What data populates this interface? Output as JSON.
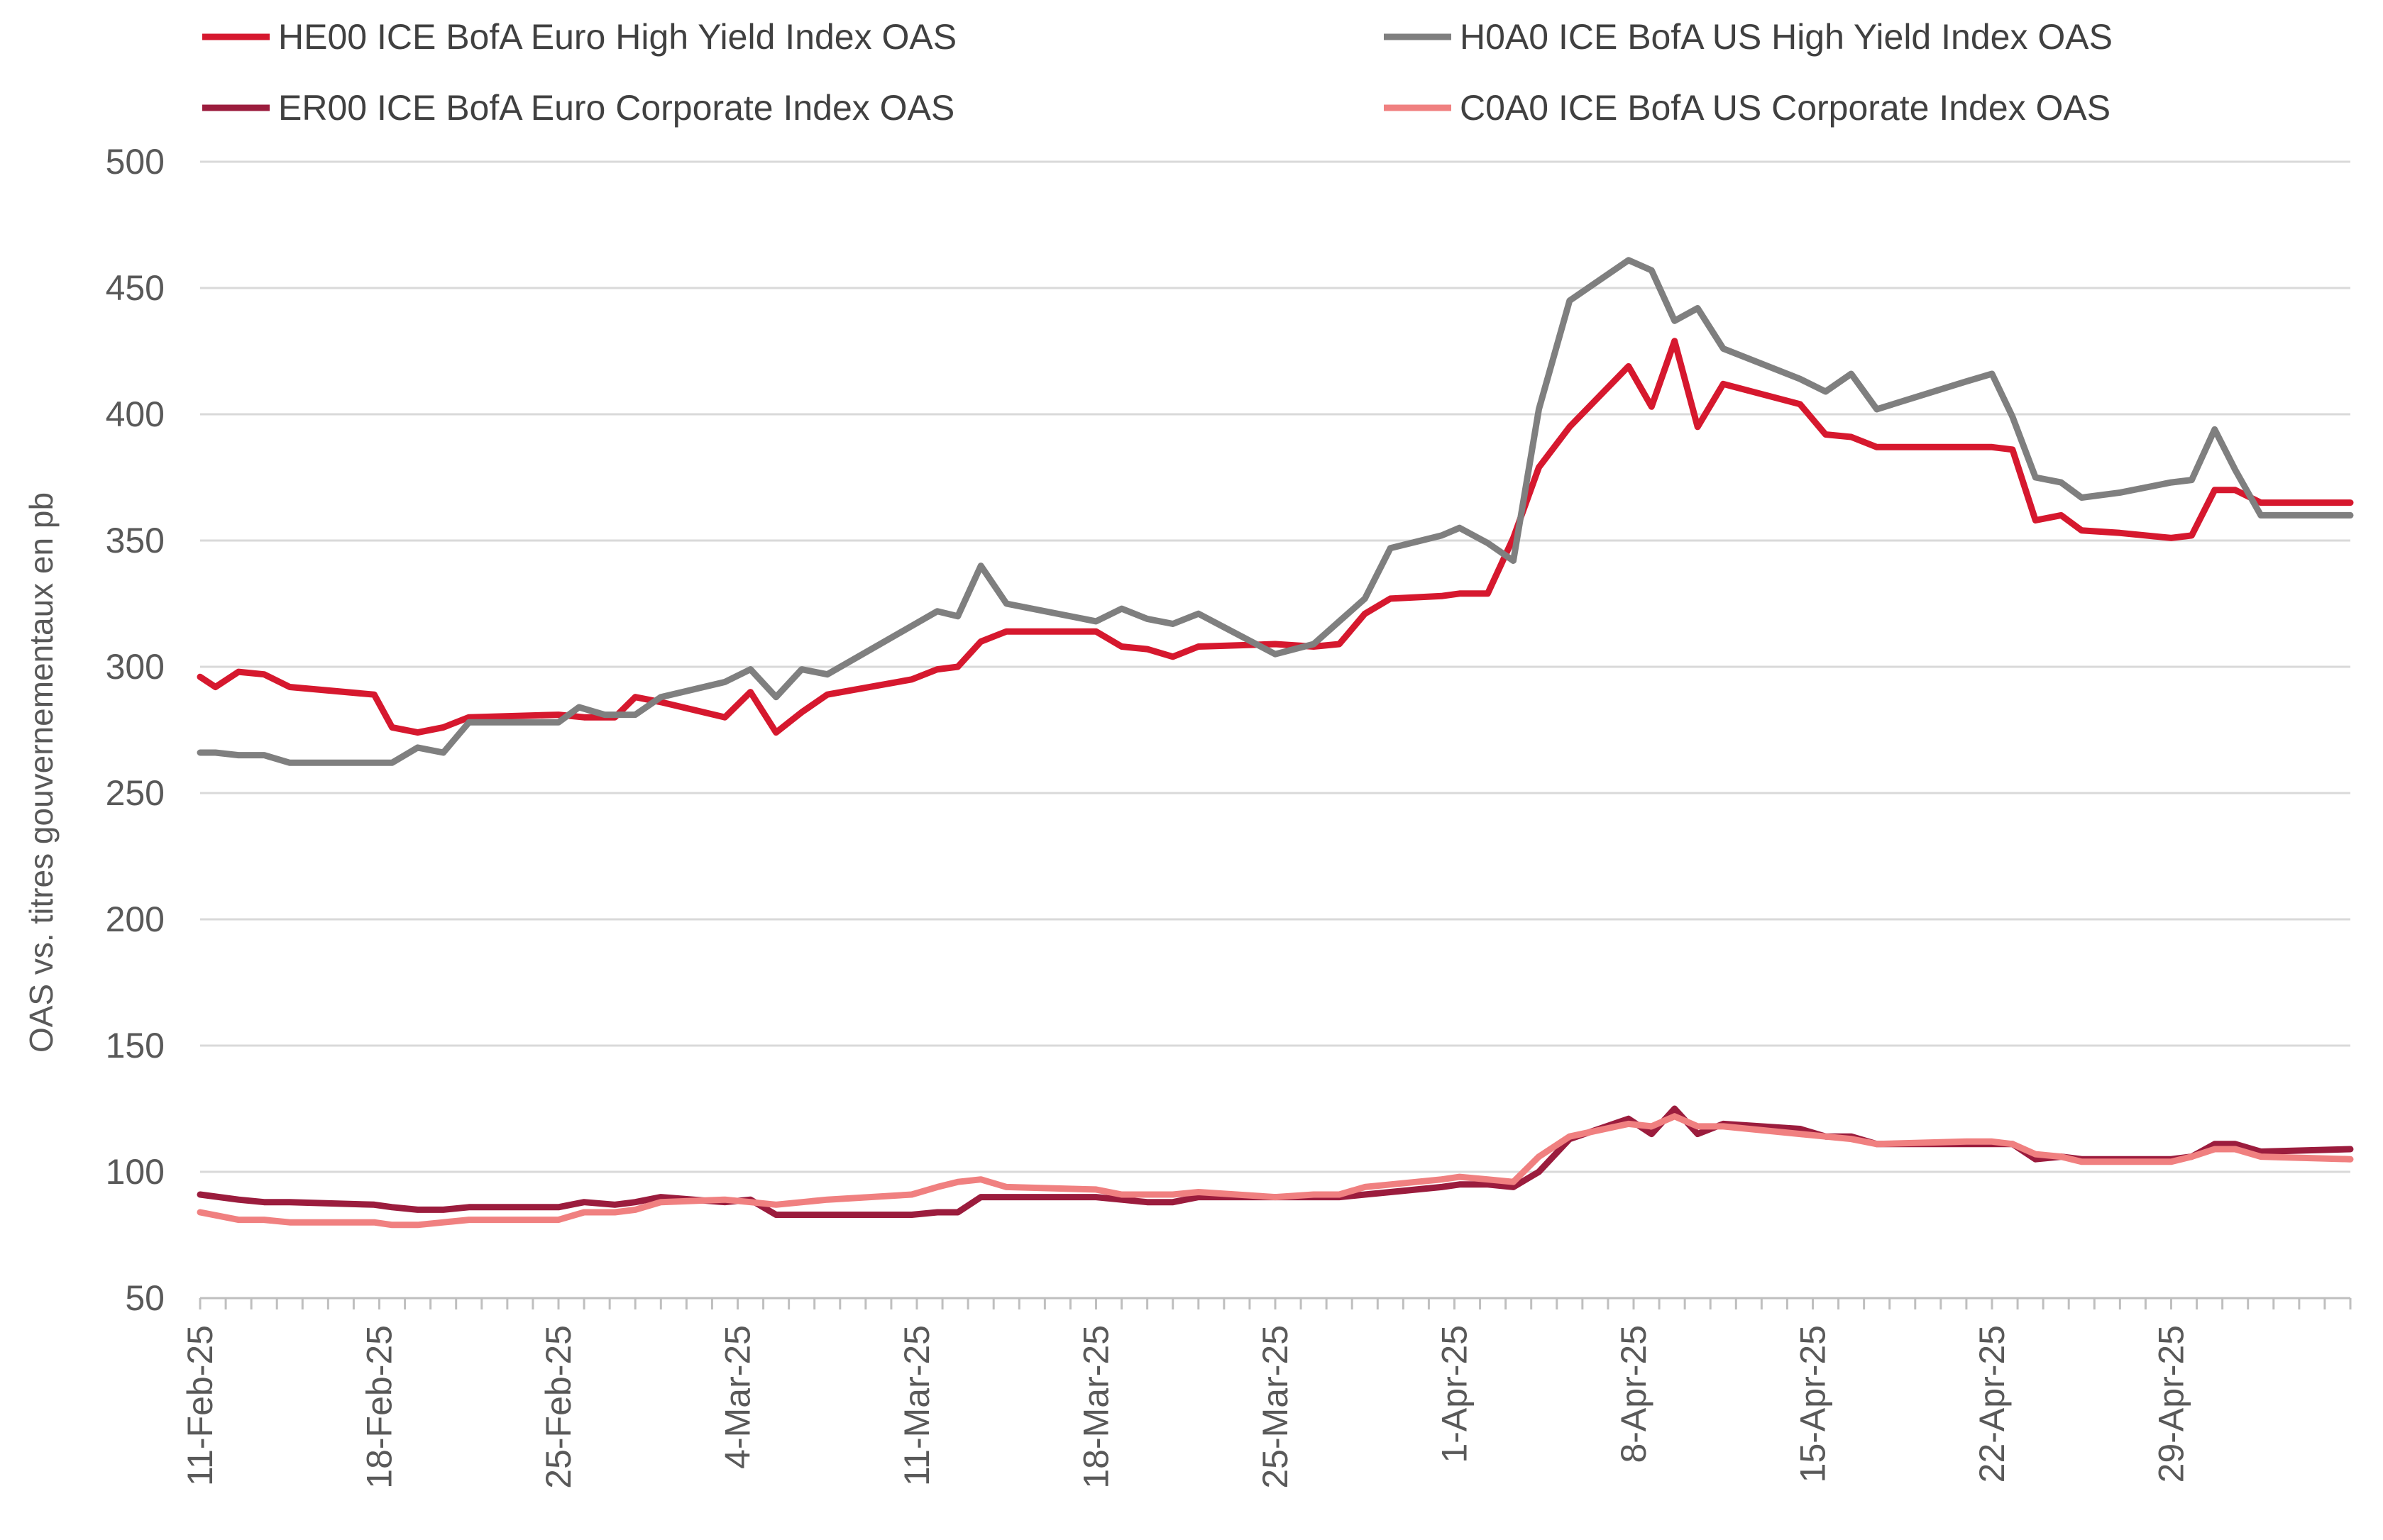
{
  "chart_data": {
    "type": "line",
    "ylabel": "OAS vs. titres gouvernementaux en pb",
    "xlabel": "",
    "ylim": [
      50,
      500
    ],
    "yticks": [
      50,
      100,
      150,
      200,
      250,
      300,
      350,
      400,
      450,
      500
    ],
    "grid": "horizontal",
    "legend_position": "top",
    "x_tick_labels": [
      "11-Feb-25",
      "18-Feb-25",
      "25-Feb-25",
      "4-Mar-25",
      "11-Mar-25",
      "18-Mar-25",
      "25-Mar-25",
      "1-Apr-25",
      "8-Apr-25",
      "15-Apr-25",
      "22-Apr-25",
      "29-Apr-25"
    ],
    "x_tick_days": [
      0,
      7,
      14,
      21,
      28,
      35,
      42,
      49,
      56,
      63,
      70,
      77
    ],
    "x_range_days": [
      0,
      84
    ],
    "series": [
      {
        "name": "HE00 ICE BofA Euro High Yield Index OAS",
        "color": "#d6182e",
        "points": [
          [
            0,
            296
          ],
          [
            0.6,
            292
          ],
          [
            1.5,
            298
          ],
          [
            2.5,
            297
          ],
          [
            3.5,
            292
          ],
          [
            6.8,
            289
          ],
          [
            7.5,
            276
          ],
          [
            8.5,
            274
          ],
          [
            9.5,
            276
          ],
          [
            10.5,
            280
          ],
          [
            14,
            281
          ],
          [
            15,
            280
          ],
          [
            16.2,
            280
          ],
          [
            17,
            288
          ],
          [
            18,
            286
          ],
          [
            20.5,
            280
          ],
          [
            21.5,
            290
          ],
          [
            22.5,
            274
          ],
          [
            23.5,
            282
          ],
          [
            24.5,
            289
          ],
          [
            27.8,
            295
          ],
          [
            28.8,
            299
          ],
          [
            29.6,
            300
          ],
          [
            30.5,
            310
          ],
          [
            31.5,
            314
          ],
          [
            33.5,
            314
          ],
          [
            35,
            314
          ],
          [
            36,
            308
          ],
          [
            37,
            307
          ],
          [
            38,
            304
          ],
          [
            39,
            308
          ],
          [
            42,
            309
          ],
          [
            43.5,
            308
          ],
          [
            44.5,
            309
          ],
          [
            45.5,
            321
          ],
          [
            46.5,
            327
          ],
          [
            48.5,
            328
          ],
          [
            49.2,
            329
          ],
          [
            50.3,
            329
          ],
          [
            51.3,
            351
          ],
          [
            52.3,
            379
          ],
          [
            53.5,
            395
          ],
          [
            55.8,
            419
          ],
          [
            56.7,
            403
          ],
          [
            57.6,
            429
          ],
          [
            58.5,
            395
          ],
          [
            59.5,
            412
          ],
          [
            62.5,
            404
          ],
          [
            63.5,
            392
          ],
          [
            64.5,
            391
          ],
          [
            65.5,
            387
          ],
          [
            69,
            387
          ],
          [
            70,
            387
          ],
          [
            70.8,
            386
          ],
          [
            71.7,
            358
          ],
          [
            72.7,
            360
          ],
          [
            73.5,
            354
          ],
          [
            75,
            353
          ],
          [
            77,
            351
          ],
          [
            77.8,
            352
          ],
          [
            78.7,
            370
          ],
          [
            79.5,
            370
          ],
          [
            80.5,
            365
          ],
          [
            84,
            365
          ]
        ]
      },
      {
        "name": "H0A0 ICE BofA US High Yield Index OAS",
        "color": "#7f7f7f",
        "points": [
          [
            0,
            266
          ],
          [
            0.6,
            266
          ],
          [
            1.5,
            265
          ],
          [
            2.5,
            265
          ],
          [
            3.5,
            262
          ],
          [
            6.8,
            262
          ],
          [
            7.5,
            262
          ],
          [
            8.5,
            268
          ],
          [
            9.5,
            266
          ],
          [
            10.5,
            278
          ],
          [
            14,
            278
          ],
          [
            14.8,
            284
          ],
          [
            15.8,
            281
          ],
          [
            17,
            281
          ],
          [
            18,
            288
          ],
          [
            20.5,
            294
          ],
          [
            21.5,
            299
          ],
          [
            22.5,
            288
          ],
          [
            23.5,
            299
          ],
          [
            24.5,
            297
          ],
          [
            28.8,
            322
          ],
          [
            29.6,
            320
          ],
          [
            30.5,
            340
          ],
          [
            31.5,
            325
          ],
          [
            35,
            318
          ],
          [
            36,
            323
          ],
          [
            37,
            319
          ],
          [
            38,
            317
          ],
          [
            39,
            321
          ],
          [
            42,
            305
          ],
          [
            43.5,
            309
          ],
          [
            44.5,
            318
          ],
          [
            45.5,
            327
          ],
          [
            46.5,
            347
          ],
          [
            48.5,
            352
          ],
          [
            49.2,
            355
          ],
          [
            50.3,
            349
          ],
          [
            51.3,
            342
          ],
          [
            52.3,
            402
          ],
          [
            53.5,
            445
          ],
          [
            55.8,
            461
          ],
          [
            56.7,
            457
          ],
          [
            57.6,
            437
          ],
          [
            58.5,
            442
          ],
          [
            59.5,
            426
          ],
          [
            62.5,
            414
          ],
          [
            63.5,
            409
          ],
          [
            64.5,
            416
          ],
          [
            65.5,
            402
          ],
          [
            69,
            413
          ],
          [
            70,
            416
          ],
          [
            70.8,
            399
          ],
          [
            71.7,
            375
          ],
          [
            72.7,
            373
          ],
          [
            73.5,
            367
          ],
          [
            75,
            369
          ],
          [
            77,
            373
          ],
          [
            77.8,
            374
          ],
          [
            78.7,
            394
          ],
          [
            79.5,
            378
          ],
          [
            80.5,
            360
          ],
          [
            84,
            360
          ]
        ]
      },
      {
        "name": "ER00 ICE BofA Euro Corporate Index OAS",
        "color": "#9b1c3d",
        "points": [
          [
            0,
            91
          ],
          [
            1.5,
            89
          ],
          [
            2.5,
            88
          ],
          [
            3.5,
            88
          ],
          [
            6.8,
            87
          ],
          [
            7.5,
            86
          ],
          [
            8.5,
            85
          ],
          [
            9.5,
            85
          ],
          [
            10.5,
            86
          ],
          [
            14,
            86
          ],
          [
            15,
            88
          ],
          [
            16.2,
            87
          ],
          [
            17,
            88
          ],
          [
            18,
            90
          ],
          [
            20.5,
            88
          ],
          [
            21.5,
            89
          ],
          [
            22.5,
            83
          ],
          [
            24.5,
            83
          ],
          [
            27.8,
            83
          ],
          [
            28.8,
            84
          ],
          [
            29.6,
            84
          ],
          [
            30.5,
            90
          ],
          [
            31.5,
            90
          ],
          [
            35,
            90
          ],
          [
            36,
            89
          ],
          [
            37,
            88
          ],
          [
            38,
            88
          ],
          [
            39,
            90
          ],
          [
            42,
            90
          ],
          [
            43.5,
            90
          ],
          [
            44.5,
            90
          ],
          [
            45.5,
            91
          ],
          [
            46.5,
            92
          ],
          [
            48.5,
            94
          ],
          [
            49.2,
            95
          ],
          [
            50.3,
            95
          ],
          [
            51.3,
            94
          ],
          [
            52.3,
            100
          ],
          [
            53.5,
            113
          ],
          [
            55.8,
            121
          ],
          [
            56.7,
            115
          ],
          [
            57.6,
            125
          ],
          [
            58.5,
            115
          ],
          [
            59.5,
            119
          ],
          [
            62.5,
            117
          ],
          [
            63.5,
            114
          ],
          [
            64.5,
            114
          ],
          [
            65.5,
            111
          ],
          [
            69,
            111
          ],
          [
            70,
            111
          ],
          [
            70.8,
            111
          ],
          [
            71.7,
            105
          ],
          [
            72.7,
            106
          ],
          [
            73.5,
            105
          ],
          [
            75,
            105
          ],
          [
            77,
            105
          ],
          [
            77.8,
            106
          ],
          [
            78.7,
            111
          ],
          [
            79.5,
            111
          ],
          [
            80.5,
            108
          ],
          [
            84,
            109
          ]
        ]
      },
      {
        "name": "C0A0 ICE BofA US Corporate Index OAS",
        "color": "#f08080",
        "points": [
          [
            0,
            84
          ],
          [
            1.5,
            81
          ],
          [
            2.5,
            81
          ],
          [
            3.5,
            80
          ],
          [
            6.8,
            80
          ],
          [
            7.5,
            79
          ],
          [
            8.5,
            79
          ],
          [
            9.5,
            80
          ],
          [
            10.5,
            81
          ],
          [
            14,
            81
          ],
          [
            15,
            84
          ],
          [
            16.2,
            84
          ],
          [
            17,
            85
          ],
          [
            18,
            88
          ],
          [
            20.5,
            89
          ],
          [
            21.5,
            88
          ],
          [
            22.5,
            87
          ],
          [
            24.5,
            89
          ],
          [
            27.8,
            91
          ],
          [
            28.8,
            94
          ],
          [
            29.6,
            96
          ],
          [
            30.5,
            97
          ],
          [
            31.5,
            94
          ],
          [
            35,
            93
          ],
          [
            36,
            91
          ],
          [
            37,
            91
          ],
          [
            38,
            91
          ],
          [
            39,
            92
          ],
          [
            42,
            90
          ],
          [
            43.5,
            91
          ],
          [
            44.5,
            91
          ],
          [
            45.5,
            94
          ],
          [
            46.5,
            95
          ],
          [
            48.5,
            97
          ],
          [
            49.2,
            98
          ],
          [
            50.3,
            97
          ],
          [
            51.3,
            96
          ],
          [
            52.3,
            106
          ],
          [
            53.5,
            114
          ],
          [
            55.8,
            119
          ],
          [
            56.7,
            118
          ],
          [
            57.6,
            122
          ],
          [
            58.5,
            118
          ],
          [
            59.5,
            118
          ],
          [
            62.5,
            115
          ],
          [
            63.5,
            114
          ],
          [
            64.5,
            113
          ],
          [
            65.5,
            111
          ],
          [
            69,
            112
          ],
          [
            70,
            112
          ],
          [
            70.8,
            111
          ],
          [
            71.7,
            107
          ],
          [
            72.7,
            106
          ],
          [
            73.5,
            104
          ],
          [
            75,
            104
          ],
          [
            77,
            104
          ],
          [
            77.8,
            106
          ],
          [
            78.7,
            109
          ],
          [
            79.5,
            109
          ],
          [
            80.5,
            106
          ],
          [
            84,
            105
          ]
        ]
      }
    ]
  }
}
